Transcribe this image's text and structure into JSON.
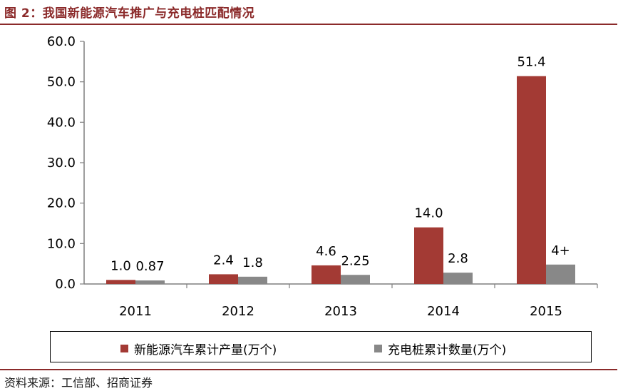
{
  "figure": {
    "title": "图 2：我国新能源汽车推广与充电桩匹配情况",
    "source": "资料来源：工信部、招商证券"
  },
  "colors": {
    "series_1": "#a33a34",
    "series_2": "#888888",
    "title": "#8b2a2a",
    "axis": "#7f7f7f"
  },
  "chart_data": {
    "type": "bar",
    "categories": [
      "2011",
      "2012",
      "2013",
      "2014",
      "2015"
    ],
    "series": [
      {
        "name": "新能源汽车累计产量(万个)",
        "values": [
          1.0,
          2.4,
          4.6,
          14.0,
          51.4
        ],
        "labels": [
          "1.0",
          "2.4",
          "4.6",
          "14.0",
          "51.4"
        ]
      },
      {
        "name": "充电桩累计数量(万个)",
        "values": [
          0.87,
          1.8,
          2.25,
          2.8,
          4.8
        ],
        "labels": [
          "0.87",
          "1.8",
          "2.25",
          "2.8",
          "4+"
        ]
      }
    ],
    "y_ticks": [
      "0.0",
      "10.0",
      "20.0",
      "30.0",
      "40.0",
      "50.0",
      "60.0"
    ],
    "ylim": [
      0,
      60
    ],
    "grid": false,
    "legend_position": "bottom"
  }
}
